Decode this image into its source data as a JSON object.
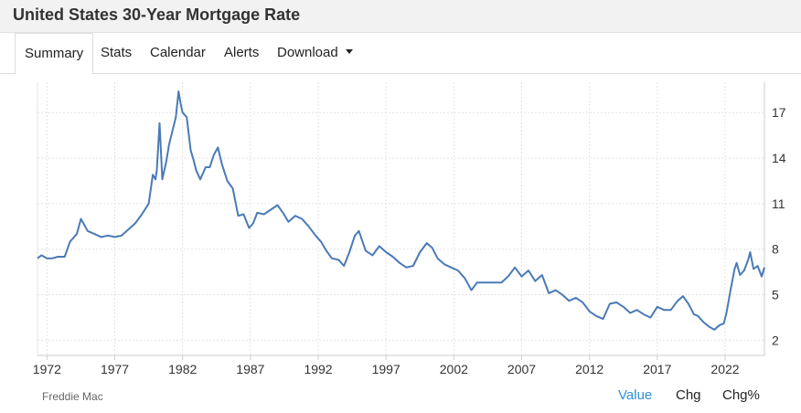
{
  "title": "United States 30-Year Mortgage Rate",
  "tabs": [
    {
      "label": "Summary",
      "active": true
    },
    {
      "label": "Stats"
    },
    {
      "label": "Calendar"
    },
    {
      "label": "Alerts"
    },
    {
      "label": "Download",
      "dropdown": true
    }
  ],
  "source": "Freddie Mac",
  "toggles": [
    "Value",
    "Chg",
    "Chg%"
  ],
  "active_toggle": "Value",
  "line_color": "#4a7ab7",
  "chart_data": {
    "type": "line",
    "title": "",
    "xlabel": "",
    "ylabel": "",
    "x_ticks": [
      "1972",
      "1977",
      "1982",
      "1987",
      "1992",
      "1997",
      "2002",
      "2007",
      "2012",
      "2017",
      "2022"
    ],
    "y_ticks": [
      "2",
      "5",
      "8",
      "11",
      "14",
      "17"
    ],
    "xlim": [
      1971.3,
      2024.9
    ],
    "ylim": [
      1.0,
      19.0
    ],
    "grid": true,
    "legend": "none",
    "series": [
      {
        "x": [
          1971.3,
          1971.6,
          1972.0,
          1972.4,
          1972.8,
          1973.3,
          1973.7,
          1974.2,
          1974.5,
          1975.0,
          1975.5,
          1976.0,
          1976.5,
          1977.0,
          1977.5,
          1978.0,
          1978.5,
          1979.0,
          1979.5,
          1979.8,
          1980.0,
          1980.1,
          1980.3,
          1980.5,
          1980.8,
          1981.0,
          1981.2,
          1981.5,
          1981.7,
          1981.85,
          1982.0,
          1982.3,
          1982.6,
          1982.8,
          1983.0,
          1983.3,
          1983.7,
          1984.0,
          1984.3,
          1984.6,
          1984.9,
          1985.3,
          1985.7,
          1986.1,
          1986.5,
          1986.9,
          1987.2,
          1987.5,
          1988.0,
          1988.5,
          1989.0,
          1989.4,
          1989.8,
          1990.3,
          1990.8,
          1991.3,
          1991.8,
          1992.2,
          1992.6,
          1993.0,
          1993.5,
          1993.9,
          1994.3,
          1994.7,
          1995.0,
          1995.5,
          1996.0,
          1996.5,
          1997.0,
          1997.5,
          1998.0,
          1998.5,
          1999.0,
          1999.5,
          2000.0,
          2000.4,
          2000.8,
          2001.3,
          2001.8,
          2002.3,
          2002.8,
          2003.3,
          2003.7,
          2004.2,
          2004.6,
          2005.0,
          2005.5,
          2006.0,
          2006.5,
          2007.0,
          2007.5,
          2008.0,
          2008.5,
          2009.0,
          2009.5,
          2010.0,
          2010.5,
          2011.0,
          2011.5,
          2012.0,
          2012.5,
          2013.0,
          2013.5,
          2014.0,
          2014.5,
          2015.0,
          2015.5,
          2016.0,
          2016.5,
          2017.0,
          2017.5,
          2018.0,
          2018.5,
          2018.9,
          2019.3,
          2019.7,
          2020.0,
          2020.4,
          2020.8,
          2021.2,
          2021.6,
          2021.9,
          2022.1,
          2022.4,
          2022.7,
          2022.85,
          2023.1,
          2023.4,
          2023.7,
          2023.85,
          2024.1,
          2024.4,
          2024.7,
          2024.9
        ],
        "values": [
          7.4,
          7.6,
          7.4,
          7.4,
          7.5,
          7.5,
          8.5,
          9.0,
          10.0,
          9.2,
          9.0,
          8.8,
          8.9,
          8.8,
          8.9,
          9.3,
          9.7,
          10.3,
          11.0,
          12.9,
          12.6,
          13.2,
          16.3,
          12.6,
          13.8,
          14.9,
          15.6,
          16.7,
          18.4,
          17.6,
          17.0,
          16.7,
          14.5,
          13.9,
          13.2,
          12.6,
          13.4,
          13.4,
          14.2,
          14.7,
          13.6,
          12.5,
          12.0,
          10.2,
          10.3,
          9.4,
          9.7,
          10.4,
          10.3,
          10.6,
          10.9,
          10.4,
          9.8,
          10.2,
          10.0,
          9.5,
          8.9,
          8.5,
          7.9,
          7.4,
          7.3,
          6.9,
          7.8,
          8.9,
          9.2,
          7.9,
          7.6,
          8.2,
          7.8,
          7.5,
          7.1,
          6.8,
          6.9,
          7.8,
          8.4,
          8.1,
          7.4,
          7.0,
          6.8,
          6.6,
          6.1,
          5.3,
          5.8,
          5.8,
          5.8,
          5.8,
          5.8,
          6.2,
          6.8,
          6.2,
          6.6,
          5.9,
          6.3,
          5.1,
          5.3,
          5.0,
          4.6,
          4.8,
          4.5,
          3.9,
          3.6,
          3.4,
          4.4,
          4.5,
          4.2,
          3.8,
          4.0,
          3.7,
          3.5,
          4.2,
          4.0,
          4.0,
          4.6,
          4.9,
          4.4,
          3.7,
          3.6,
          3.2,
          2.9,
          2.7,
          3.0,
          3.1,
          3.8,
          5.3,
          6.7,
          7.1,
          6.3,
          6.6,
          7.3,
          7.8,
          6.7,
          6.9,
          6.2,
          6.8
        ]
      }
    ]
  }
}
